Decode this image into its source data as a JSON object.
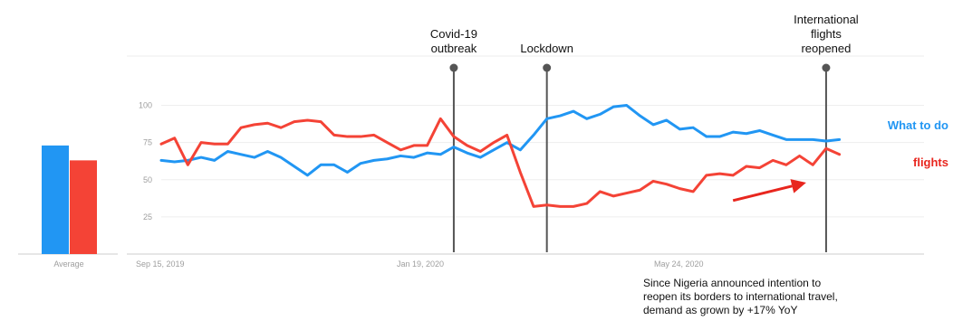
{
  "chart_data": {
    "type": "line",
    "yticks": [
      25,
      50,
      75,
      100
    ],
    "ylim": [
      0,
      107
    ],
    "xticks": [
      "Sep 15, 2019",
      "Jan 19, 2020",
      "May 24, 2020"
    ],
    "xlim": [
      0,
      56
    ],
    "series": [
      {
        "name": "What to do",
        "color": "#2196F3",
        "values": [
          63,
          62,
          63,
          65,
          63,
          69,
          67,
          65,
          69,
          65,
          59,
          53,
          60,
          60,
          55,
          61,
          63,
          64,
          66,
          65,
          68,
          67,
          72,
          68,
          65,
          70,
          75,
          70,
          80,
          91,
          93,
          96,
          91,
          94,
          99,
          100,
          93,
          87,
          90,
          84,
          85,
          79,
          79,
          82,
          81,
          83,
          80,
          77,
          77,
          77,
          76,
          77
        ]
      },
      {
        "name": "flights",
        "color": "#F44336",
        "values": [
          74,
          78,
          60,
          75,
          74,
          74,
          85,
          87,
          88,
          85,
          89,
          90,
          89,
          80,
          79,
          79,
          80,
          75,
          70,
          73,
          73,
          91,
          79,
          73,
          69,
          75,
          80,
          55,
          32,
          33,
          32,
          32,
          34,
          42,
          39,
          41,
          43,
          49,
          47,
          44,
          42,
          53,
          54,
          53,
          59,
          58,
          63,
          60,
          66,
          60,
          71,
          67
        ]
      }
    ],
    "average": {
      "label": "Average",
      "values": [
        {
          "series": "What to do",
          "value": 73
        },
        {
          "series": "flights",
          "value": 63
        }
      ]
    },
    "events": [
      {
        "lines": [
          "Covid-19",
          "outbreak"
        ],
        "x": 22
      },
      {
        "lines": [
          "Lockdown"
        ],
        "x": 29
      },
      {
        "lines": [
          "International",
          "flights",
          "reopened"
        ],
        "x": 50
      }
    ],
    "trend_arrow": {
      "from": [
        43,
        36
      ],
      "to": [
        48.5,
        48
      ],
      "color": "#E8261E"
    }
  },
  "note": {
    "lines": [
      "Since Nigeria announced intention to",
      "reopen its borders to international travel,",
      "demand as grown by +17% YoY"
    ]
  }
}
